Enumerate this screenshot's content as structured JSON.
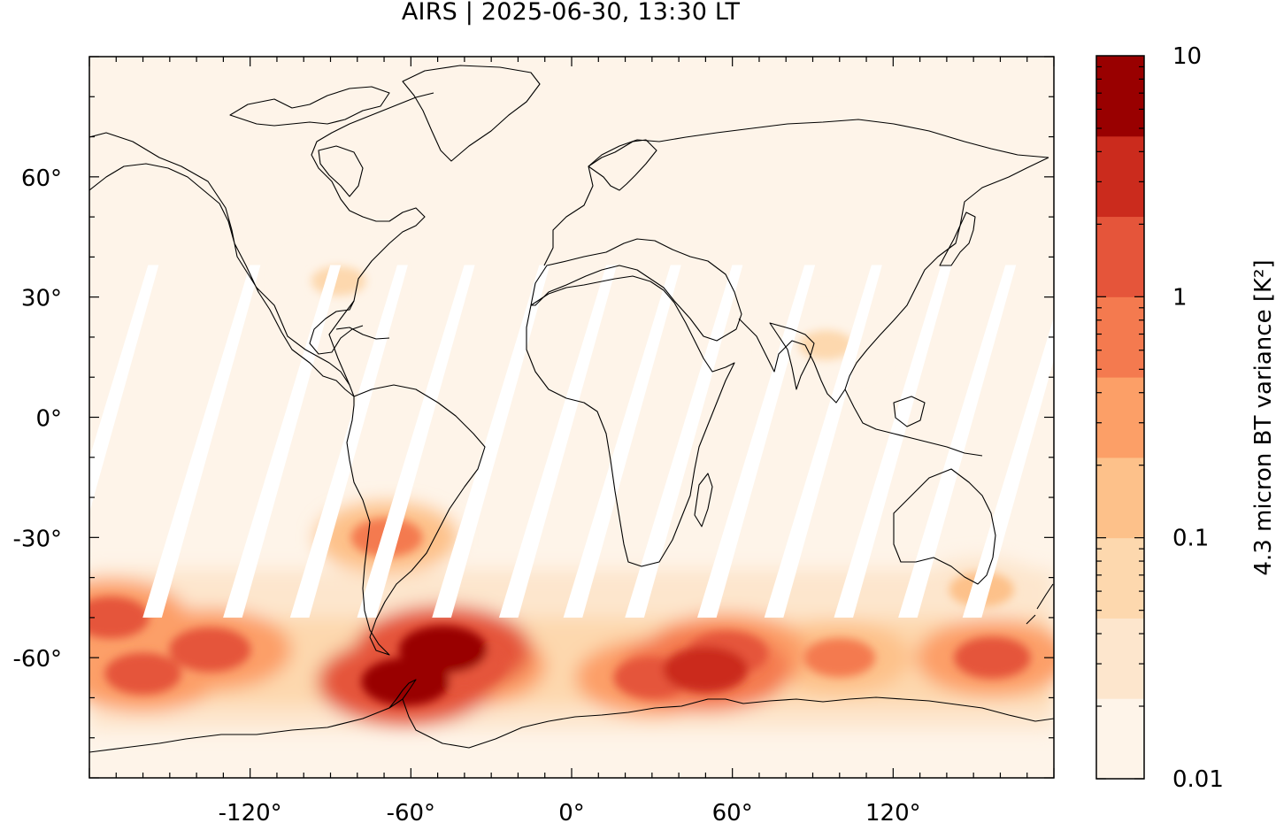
{
  "title": "AIRS | 2025-06-30, 13:30 LT",
  "map": {
    "lon_range": [
      -180,
      180
    ],
    "lat_range": [
      -90,
      90
    ],
    "lon_ticks": [
      {
        "value": -120,
        "label": "-120°"
      },
      {
        "value": -60,
        "label": "-60°"
      },
      {
        "value": 0,
        "label": "0°"
      },
      {
        "value": 60,
        "label": "60°"
      },
      {
        "value": 120,
        "label": "120°"
      }
    ],
    "lat_ticks": [
      {
        "value": 60,
        "label": "60°"
      },
      {
        "value": 30,
        "label": "30°"
      },
      {
        "value": 0,
        "label": "0°"
      },
      {
        "value": -30,
        "label": "-30°"
      },
      {
        "value": -60,
        "label": "-60°"
      }
    ],
    "background_color": "#fef4e9",
    "orbit_gap_color": "#ffffff",
    "coastline_color": "#000000"
  },
  "colorbar": {
    "label": "4.3 micron BT variance [K²]",
    "scale": "log",
    "range": [
      0.01,
      10
    ],
    "tick_labels": [
      {
        "value": 10,
        "label": "10"
      },
      {
        "value": 1,
        "label": "1"
      },
      {
        "value": 0.1,
        "label": "0.1"
      },
      {
        "value": 0.01,
        "label": "0.01"
      }
    ],
    "levels": [
      {
        "color": "#fef4e9"
      },
      {
        "color": "#fde6cd"
      },
      {
        "color": "#fdd8ae"
      },
      {
        "color": "#fdc18a"
      },
      {
        "color": "#fc9f67"
      },
      {
        "color": "#f47a4f"
      },
      {
        "color": "#e5553a"
      },
      {
        "color": "#cb2b1d"
      },
      {
        "color": "#990000"
      }
    ]
  },
  "chart_data": {
    "type": "heatmap",
    "title": "AIRS | 2025-06-30, 13:30 LT",
    "xlabel": "",
    "ylabel": "",
    "xlim": [
      -180,
      180
    ],
    "ylim": [
      -90,
      90
    ],
    "xticks": [
      -120,
      -60,
      0,
      60,
      120
    ],
    "yticks": [
      60,
      30,
      0,
      -30,
      -60
    ],
    "colorbar_label": "4.3 micron BT variance [K²]",
    "colorbar_scale": "log",
    "colorbar_range": [
      0.01,
      10
    ],
    "colorbar_ticks": [
      0.01,
      0.1,
      1,
      10
    ],
    "field_max_value": 5,
    "elevated_regions": [
      {
        "lon": -48,
        "lat": -58,
        "value": 5
      },
      {
        "lon": -62,
        "lat": -66,
        "value": 5
      },
      {
        "lon": -40,
        "lat": -62,
        "value": 2
      },
      {
        "lon": -135,
        "lat": -58,
        "value": 2
      },
      {
        "lon": -160,
        "lat": -64,
        "value": 1
      },
      {
        "lon": -172,
        "lat": -50,
        "value": 1
      },
      {
        "lon": -69,
        "lat": -30,
        "value": 0.5
      },
      {
        "lon": 50,
        "lat": -63,
        "value": 3
      },
      {
        "lon": 58,
        "lat": -59,
        "value": 2
      },
      {
        "lon": 30,
        "lat": -65,
        "value": 1
      },
      {
        "lon": 100,
        "lat": -60,
        "value": 0.5
      },
      {
        "lon": 157,
        "lat": -60,
        "value": 1
      },
      {
        "lon": 153,
        "lat": -43,
        "value": 0.2
      },
      {
        "lon": -87,
        "lat": 34,
        "value": 0.05
      },
      {
        "lon": 95,
        "lat": 18,
        "value": 0.05
      }
    ]
  }
}
